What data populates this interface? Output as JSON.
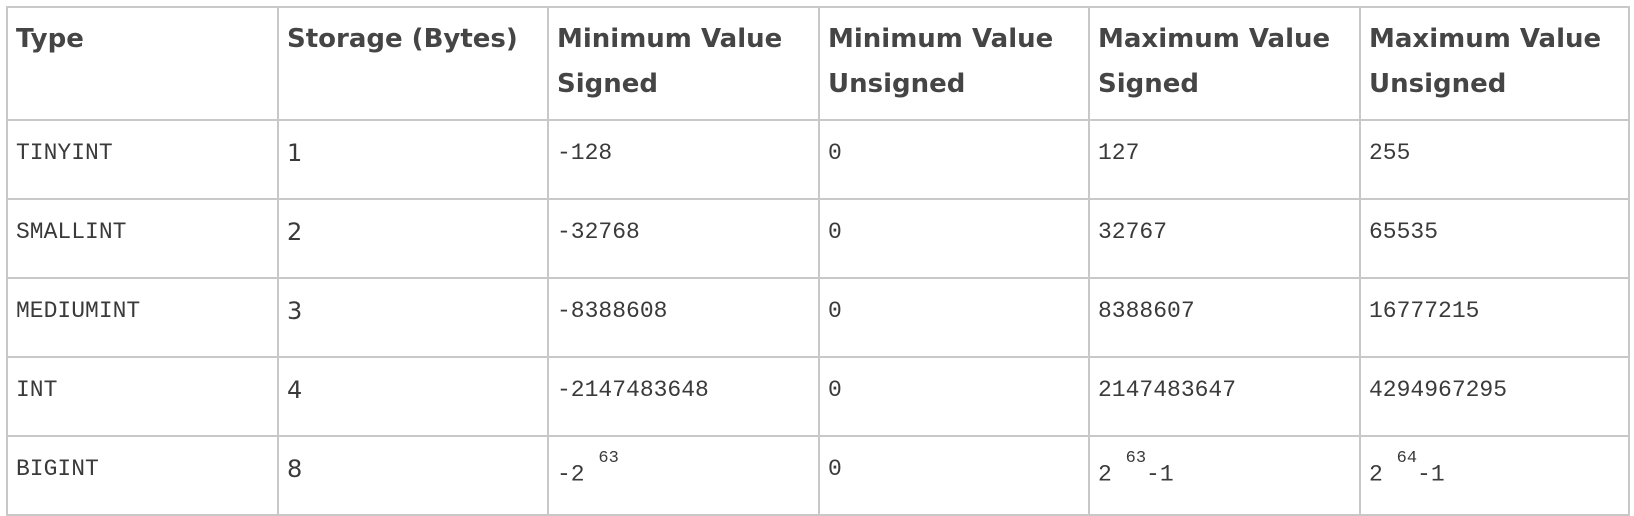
{
  "table": {
    "headers": [
      "Type",
      "Storage (Bytes)",
      "Minimum Value Signed",
      "Minimum Value Unsigned",
      "Maximum Value Signed",
      "Maximum Value Unsigned"
    ],
    "rows": [
      {
        "type": "TINYINT",
        "storage": "1",
        "min_signed": "-128",
        "min_unsigned": "0",
        "max_signed": "127",
        "max_unsigned": "255"
      },
      {
        "type": "SMALLINT",
        "storage": "2",
        "min_signed": "-32768",
        "min_unsigned": "0",
        "max_signed": "32767",
        "max_unsigned": "65535"
      },
      {
        "type": "MEDIUMINT",
        "storage": "3",
        "min_signed": "-8388608",
        "min_unsigned": "0",
        "max_signed": "8388607",
        "max_unsigned": "16777215"
      },
      {
        "type": "INT",
        "storage": "4",
        "min_signed": "-2147483648",
        "min_unsigned": "0",
        "max_signed": "2147483647",
        "max_unsigned": "4294967295"
      },
      {
        "type": "BIGINT",
        "storage": "8",
        "min_signed": {
          "base": "-2",
          "exp": "63",
          "suffix": ""
        },
        "min_unsigned": "0",
        "max_signed": {
          "base": "2",
          "exp": "63",
          "suffix": "-1"
        },
        "max_unsigned": {
          "base": "2",
          "exp": "64",
          "suffix": "-1"
        }
      }
    ]
  }
}
